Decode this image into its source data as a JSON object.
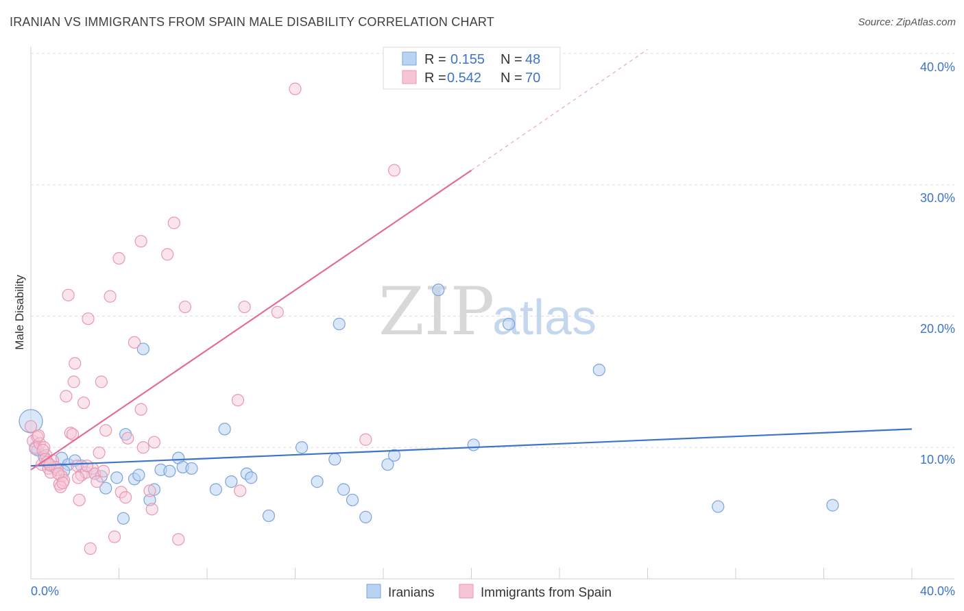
{
  "header": {
    "title": "IRANIAN VS IMMIGRANTS FROM SPAIN MALE DISABILITY CORRELATION CHART",
    "source": "Source: ZipAtlas.com"
  },
  "watermark": {
    "zip": "ZIP",
    "atlas": "atlas"
  },
  "colors": {
    "blue": "#3c74c9",
    "pink": "#e56b95",
    "blue_fill": "#b9d3f3",
    "pink_fill": "#f7c6d5"
  },
  "legend": {
    "rows": [
      {
        "r_label": "R =",
        "r_value": "0.155",
        "n_label": "N =",
        "n_value": "48"
      },
      {
        "r_label": "R =",
        "r_value": "0.542",
        "n_label": "N =",
        "n_value": "70"
      }
    ]
  },
  "bottom_legend": {
    "series1": "Iranians",
    "series2": "Immigrants from Spain"
  },
  "chart_data": {
    "type": "scatter",
    "title": "IRANIAN VS IMMIGRANTS FROM SPAIN MALE DISABILITY CORRELATION CHART",
    "xlabel": "",
    "ylabel": "Male Disability",
    "xlim": [
      0,
      40
    ],
    "ylim": [
      0,
      40
    ],
    "x_tick_labels": [
      "0.0%",
      "40.0%"
    ],
    "y_ticks": [
      10,
      20,
      30,
      40
    ],
    "y_tick_labels": [
      "10.0%",
      "20.0%",
      "30.0%",
      "40.0%"
    ],
    "grid": true,
    "series": [
      {
        "name": "Iranians",
        "color": "#3c74c9",
        "r": 0.155,
        "n": 48,
        "trend": {
          "x0": 0,
          "y0": 8.6,
          "x1": 40,
          "y1": 11.4
        },
        "points": [
          [
            0.0,
            12.0
          ],
          [
            0.3,
            9.8
          ],
          [
            0.6,
            9.3
          ],
          [
            0.9,
            8.6
          ],
          [
            1.1,
            8.5
          ],
          [
            1.4,
            9.2
          ],
          [
            1.7,
            8.7
          ],
          [
            2.0,
            9.0
          ],
          [
            2.3,
            8.6
          ],
          [
            2.9,
            8.0
          ],
          [
            3.2,
            7.8
          ],
          [
            3.4,
            6.9
          ],
          [
            3.9,
            7.7
          ],
          [
            4.2,
            4.6
          ],
          [
            4.3,
            11.0
          ],
          [
            4.7,
            7.6
          ],
          [
            4.9,
            7.9
          ],
          [
            5.1,
            17.5
          ],
          [
            5.4,
            6.0
          ],
          [
            5.6,
            6.8
          ],
          [
            5.9,
            8.3
          ],
          [
            6.3,
            8.2
          ],
          [
            6.7,
            9.2
          ],
          [
            6.9,
            8.5
          ],
          [
            7.3,
            8.4
          ],
          [
            8.4,
            6.8
          ],
          [
            8.8,
            11.4
          ],
          [
            9.1,
            7.4
          ],
          [
            9.8,
            8.0
          ],
          [
            10.0,
            7.7
          ],
          [
            10.8,
            4.8
          ],
          [
            12.3,
            10.0
          ],
          [
            13.0,
            7.4
          ],
          [
            13.8,
            9.1
          ],
          [
            14.0,
            19.4
          ],
          [
            14.2,
            6.8
          ],
          [
            14.6,
            6.0
          ],
          [
            15.2,
            4.7
          ],
          [
            16.2,
            8.7
          ],
          [
            16.5,
            9.4
          ],
          [
            18.5,
            22.0
          ],
          [
            20.1,
            10.2
          ],
          [
            21.7,
            19.4
          ],
          [
            25.8,
            15.9
          ],
          [
            31.2,
            5.5
          ],
          [
            36.4,
            5.6
          ],
          [
            0.2,
            10.0
          ],
          [
            1.5,
            8.2
          ]
        ]
      },
      {
        "name": "Immigrants from Spain",
        "color": "#e56b95",
        "r": 0.542,
        "n": 70,
        "trend": {
          "x0": 0,
          "y0": 8.3,
          "x1": 20,
          "y1": 31.1
        },
        "trend_dashed": {
          "x0": 20,
          "y0": 31.1,
          "x1": 28,
          "y1": 40.3
        },
        "points": [
          [
            0.0,
            11.6
          ],
          [
            0.1,
            10.5
          ],
          [
            0.2,
            9.9
          ],
          [
            0.3,
            10.8
          ],
          [
            0.4,
            10.3
          ],
          [
            0.5,
            8.7
          ],
          [
            0.6,
            10.0
          ],
          [
            0.7,
            9.4
          ],
          [
            0.8,
            8.4
          ],
          [
            0.9,
            8.1
          ],
          [
            1.0,
            9.0
          ],
          [
            1.1,
            8.5
          ],
          [
            1.2,
            8.3
          ],
          [
            1.3,
            7.2
          ],
          [
            1.4,
            7.8
          ],
          [
            1.5,
            7.5
          ],
          [
            1.6,
            13.9
          ],
          [
            1.7,
            21.6
          ],
          [
            1.8,
            11.1
          ],
          [
            1.9,
            11.0
          ],
          [
            1.95,
            15.0
          ],
          [
            2.0,
            16.4
          ],
          [
            2.1,
            8.6
          ],
          [
            2.2,
            6.0
          ],
          [
            2.3,
            7.9
          ],
          [
            2.4,
            13.4
          ],
          [
            2.5,
            8.1
          ],
          [
            2.6,
            19.8
          ],
          [
            2.7,
            2.3
          ],
          [
            2.8,
            8.4
          ],
          [
            2.9,
            8.0
          ],
          [
            3.0,
            7.4
          ],
          [
            3.1,
            9.6
          ],
          [
            3.2,
            15.0
          ],
          [
            3.4,
            11.3
          ],
          [
            3.6,
            21.5
          ],
          [
            3.8,
            3.2
          ],
          [
            4.0,
            24.4
          ],
          [
            4.1,
            6.6
          ],
          [
            4.3,
            6.2
          ],
          [
            4.4,
            10.7
          ],
          [
            4.7,
            18.0
          ],
          [
            5.0,
            12.9
          ],
          [
            5.0,
            25.7
          ],
          [
            5.1,
            10.0
          ],
          [
            5.4,
            6.7
          ],
          [
            5.5,
            5.3
          ],
          [
            5.6,
            10.4
          ],
          [
            6.2,
            24.7
          ],
          [
            6.5,
            27.1
          ],
          [
            6.7,
            3.0
          ],
          [
            7.0,
            20.7
          ],
          [
            9.4,
            13.6
          ],
          [
            9.5,
            6.7
          ],
          [
            9.7,
            20.7
          ],
          [
            11.2,
            20.3
          ],
          [
            12.0,
            37.3
          ],
          [
            15.2,
            10.6
          ],
          [
            16.5,
            31.1
          ],
          [
            0.35,
            10.9
          ],
          [
            0.55,
            9.8
          ],
          [
            0.65,
            9.1
          ],
          [
            0.75,
            8.9
          ],
          [
            0.85,
            8.7
          ],
          [
            1.25,
            8.0
          ],
          [
            1.35,
            7.0
          ],
          [
            1.45,
            7.3
          ],
          [
            2.15,
            7.7
          ],
          [
            2.55,
            8.6
          ],
          [
            3.3,
            8.2
          ]
        ]
      }
    ]
  }
}
